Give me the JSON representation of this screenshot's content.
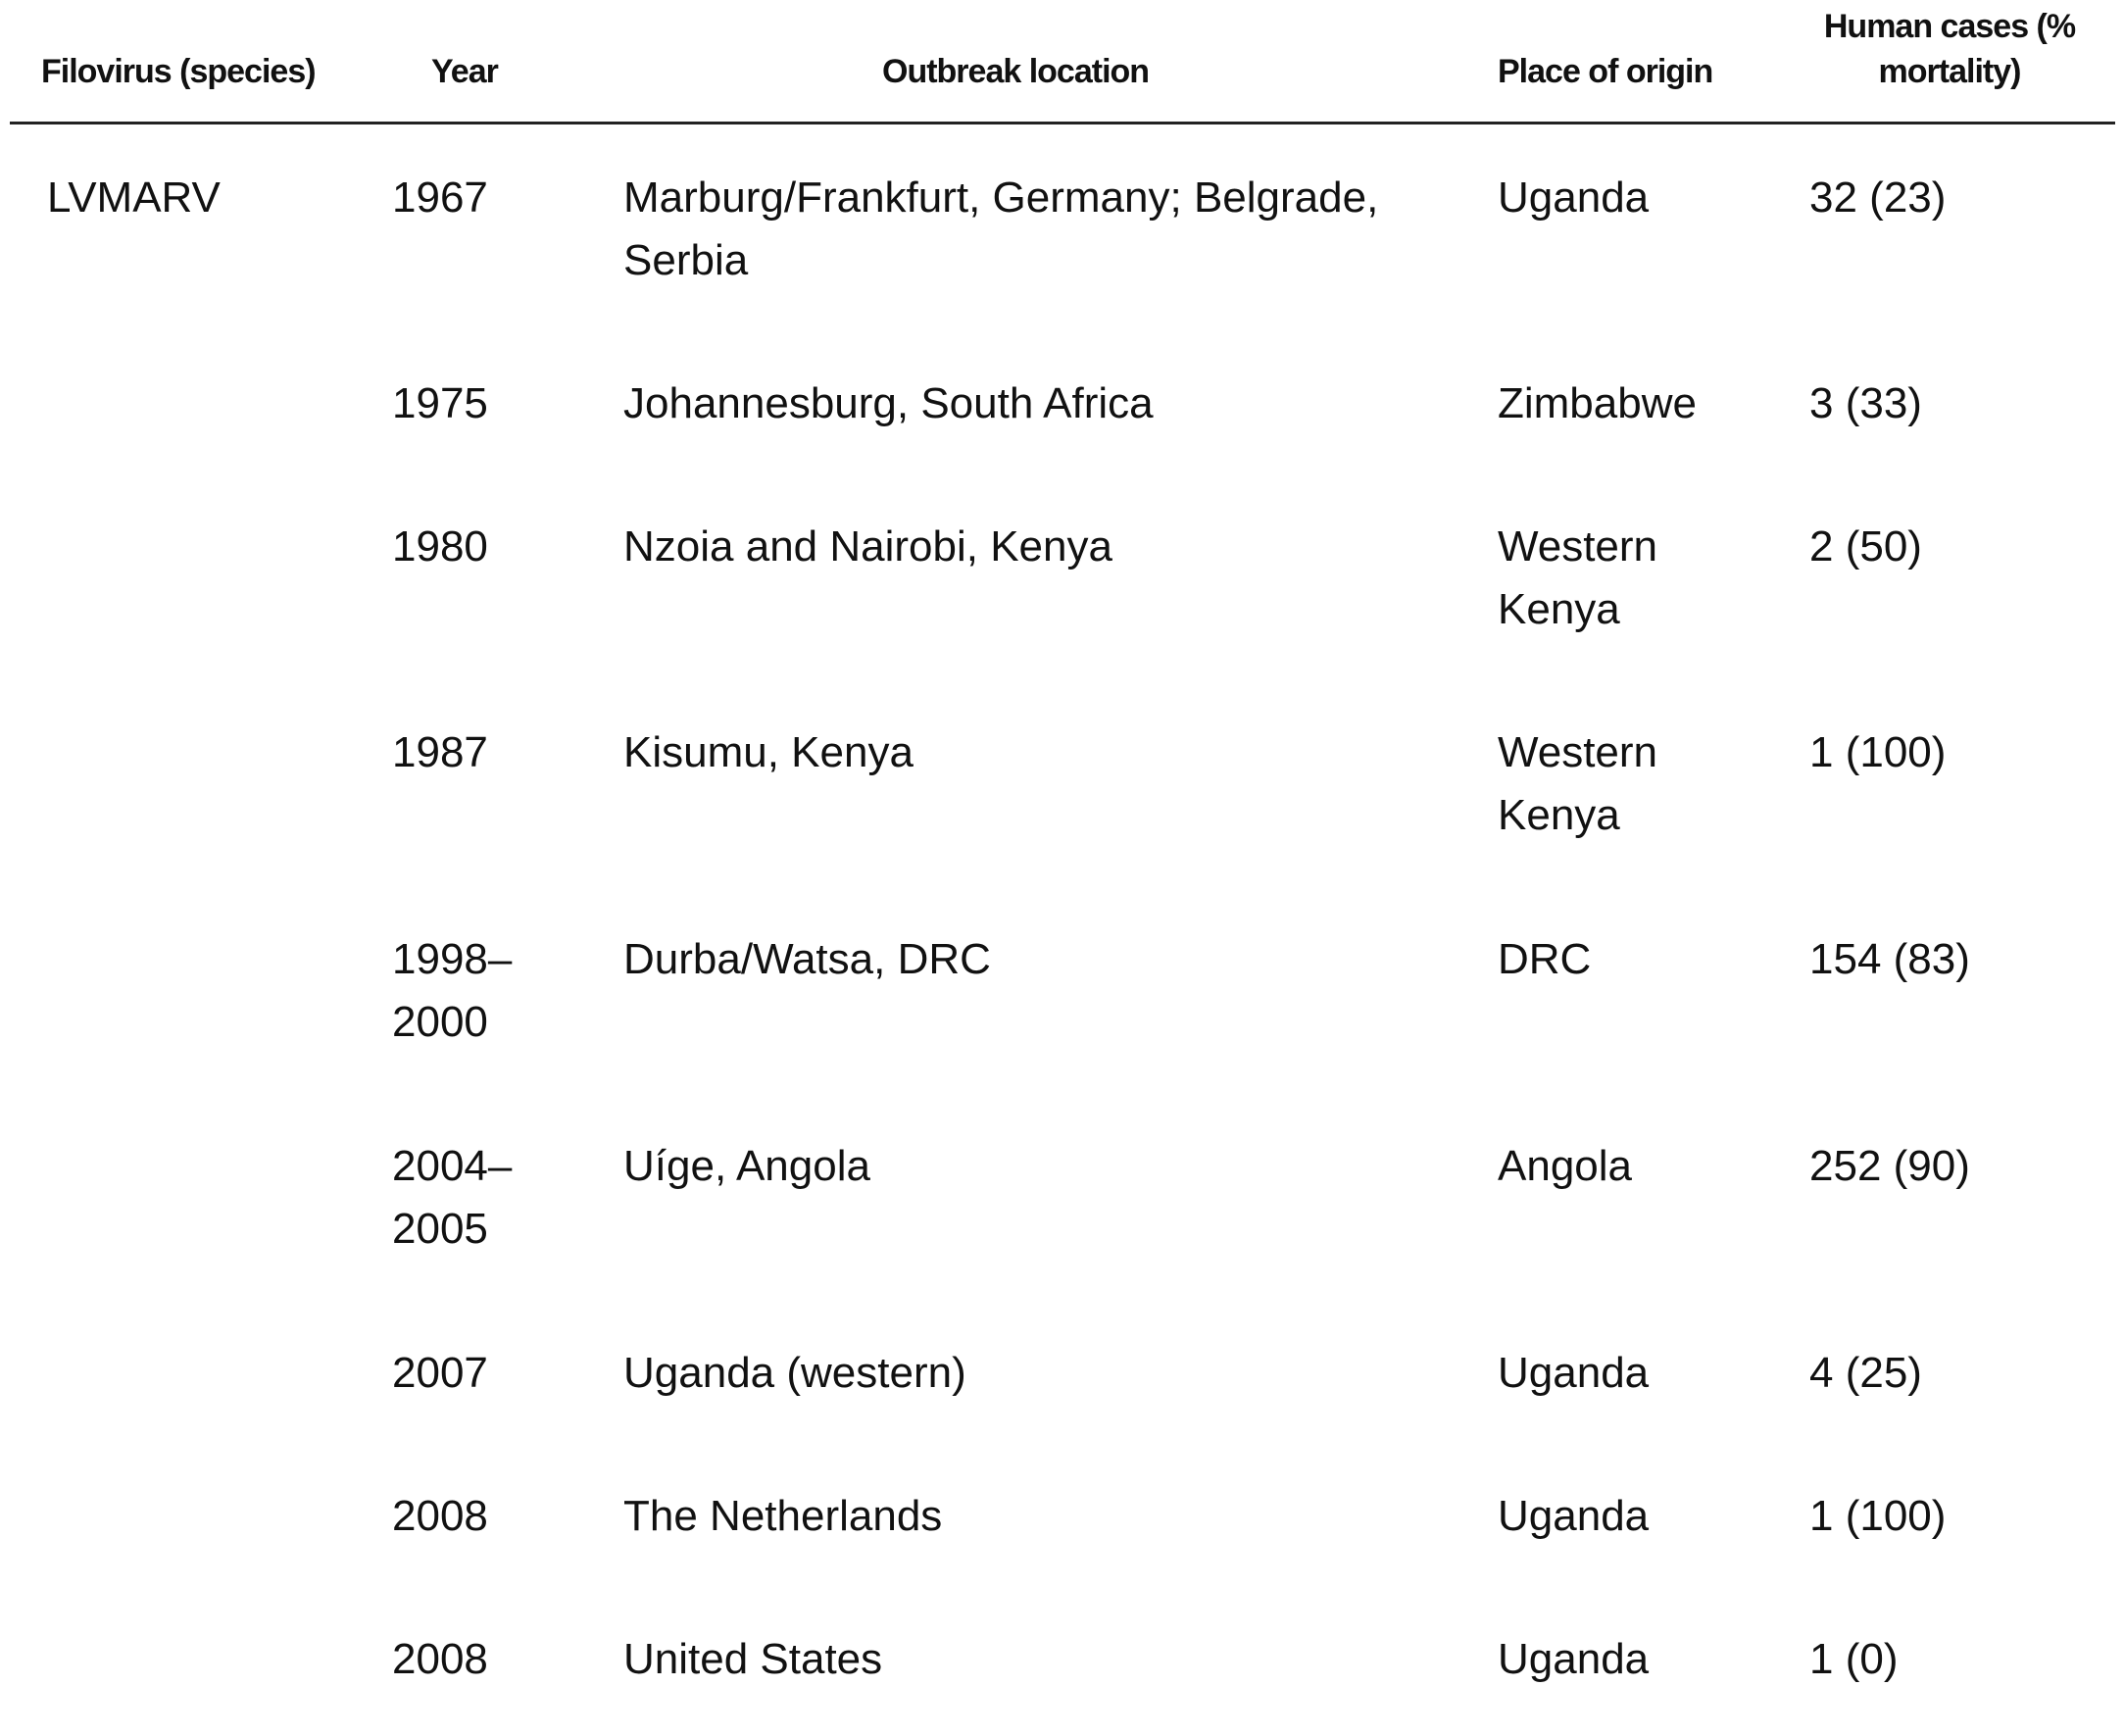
{
  "table": {
    "headers": {
      "filovirus": "Filovirus (species)",
      "year": "Year",
      "location": "Outbreak location",
      "origin": "Place of origin",
      "cases_line1": "Human cases (%",
      "cases_line2": "mortality)"
    },
    "rows": [
      {
        "filovirus": "LVMARV",
        "year": "1967",
        "location": "Marburg/Frankfurt, Germany; Belgrade, Serbia",
        "origin": "Uganda",
        "cases": "32 (23)"
      },
      {
        "filovirus": "",
        "year": "1975",
        "location": "Johannesburg, South Africa",
        "origin": "Zimbabwe",
        "cases": "3 (33)"
      },
      {
        "filovirus": "",
        "year": "1980",
        "location": "Nzoia and Nairobi, Kenya",
        "origin": "Western Kenya",
        "cases": "2 (50)"
      },
      {
        "filovirus": "",
        "year": "1987",
        "location": "Kisumu, Kenya",
        "origin": "Western Kenya",
        "cases": "1 (100)"
      },
      {
        "filovirus": "",
        "year": "1998–2000",
        "location": "Durba/Watsa, DRC",
        "origin": "DRC",
        "cases": "154 (83)"
      },
      {
        "filovirus": "",
        "year": "2004–2005",
        "location": "Uíge, Angola",
        "origin": "Angola",
        "cases": "252 (90)"
      },
      {
        "filovirus": "",
        "year": "2007",
        "location": "Uganda (western)",
        "origin": "Uganda",
        "cases": "4 (25)"
      },
      {
        "filovirus": "",
        "year": "2008",
        "location": "The Netherlands",
        "origin": "Uganda",
        "cases": "1 (100)"
      },
      {
        "filovirus": "",
        "year": "2008",
        "location": "United States",
        "origin": "Uganda",
        "cases": "1 (0)"
      }
    ]
  }
}
